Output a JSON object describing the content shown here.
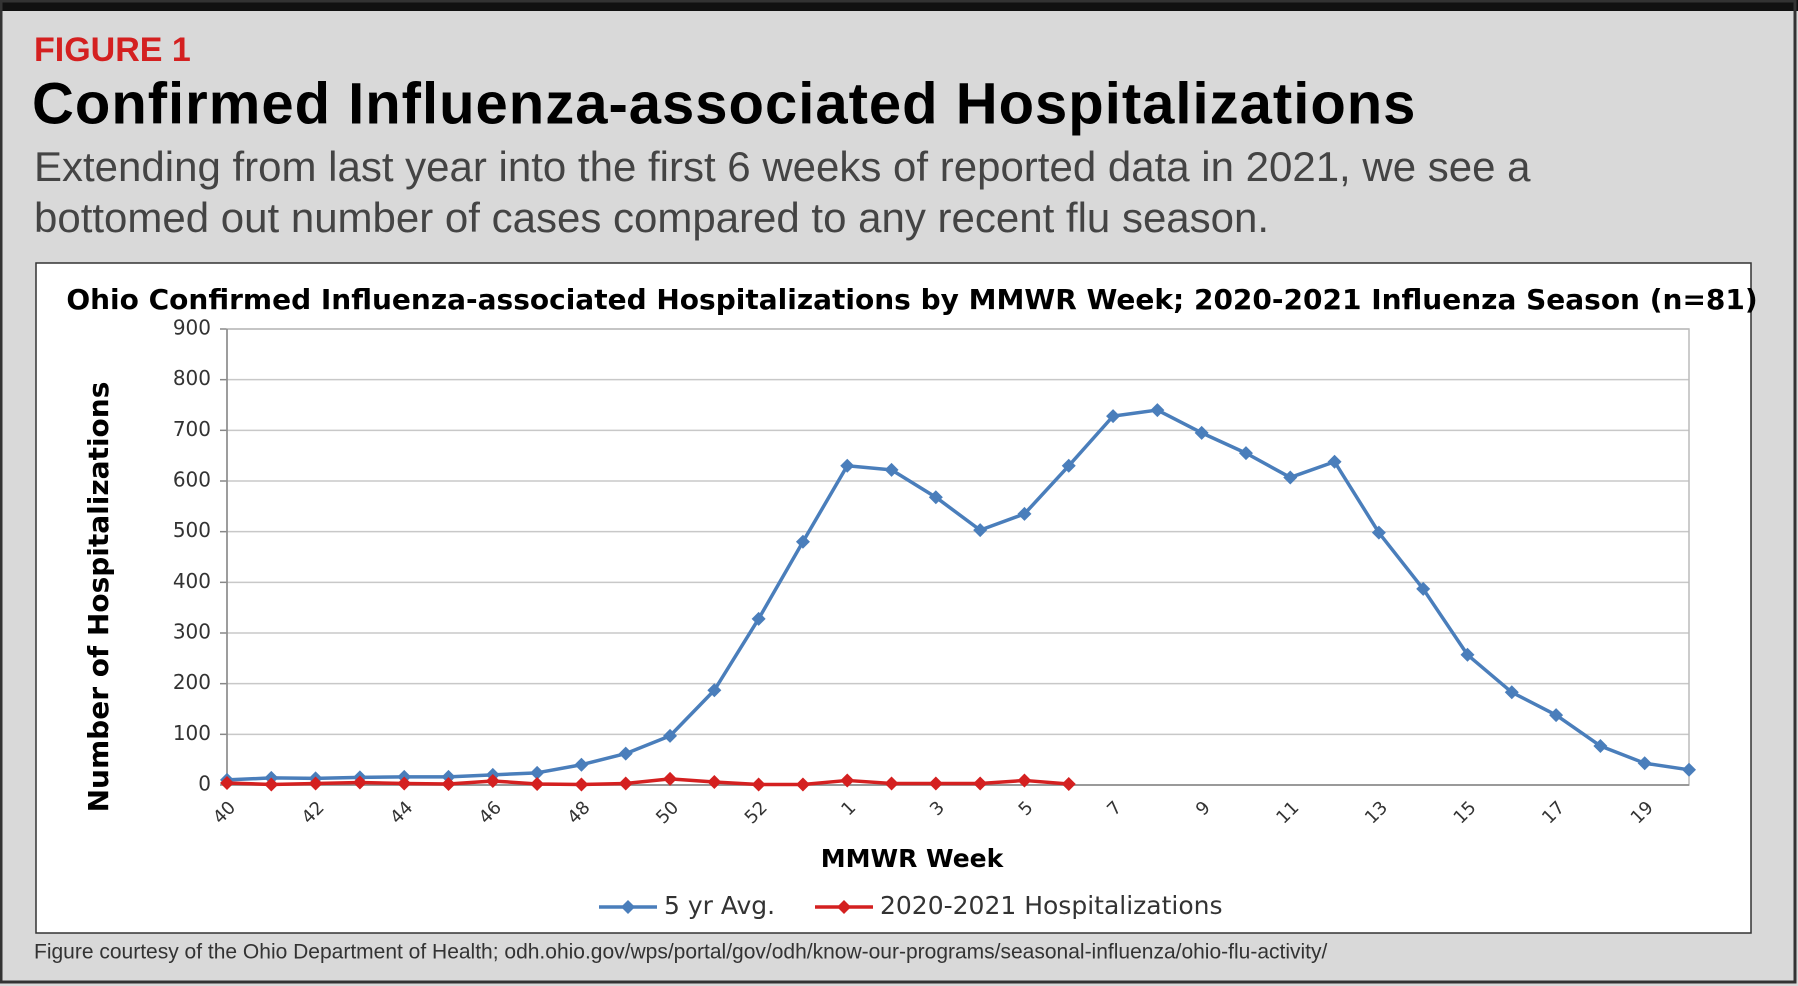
{
  "figure_label": "FIGURE 1",
  "title": "Confirmed Influenza-associated Hospitalizations",
  "subtitle_lines": [
    "Extending from last year into the first 6 weeks of reported data in 2021, we see a",
    "bottomed out number of cases compared to any recent flu season."
  ],
  "caption": "Figure courtesy of the Ohio Department of Health; odh.ohio.gov/wps/portal/gov/odh/know-our-programs/seasonal-influenza/ohio-flu-activity/",
  "chart_data": {
    "type": "line",
    "title": "Ohio Confirmed Influenza-associated Hospitalizations by MMWR Week; 2020-2021 Influenza Season (n=81)",
    "x_label": "MMWR Week",
    "y_label": "Number of Hospitalizations",
    "categories": [
      "40",
      null,
      "42",
      null,
      "44",
      null,
      "46",
      null,
      "48",
      null,
      "50",
      null,
      "52",
      null,
      "1",
      null,
      "3",
      null,
      "5",
      null,
      "7",
      null,
      "9",
      null,
      "11",
      null,
      "13",
      null,
      "15",
      null,
      "17",
      null,
      "19",
      null
    ],
    "series": [
      {
        "name": "5 yr Avg.",
        "color": "#4a7ebb",
        "values": [
          10,
          14,
          13,
          15,
          16,
          16,
          20,
          24,
          40,
          62,
          97,
          187,
          328,
          480,
          630,
          622,
          568,
          503,
          535,
          630,
          728,
          740,
          695,
          655,
          607,
          638,
          498,
          387,
          257,
          183,
          138,
          77,
          43,
          30
        ]
      },
      {
        "name": "2020-2021 Hospitalizations",
        "color": "#d42020",
        "values": [
          4,
          1,
          3,
          5,
          3,
          2,
          8,
          2,
          1,
          3,
          12,
          6,
          1,
          1,
          9,
          3,
          3,
          3,
          9,
          2,
          null,
          null,
          null,
          null,
          null,
          null,
          null,
          null,
          null,
          null,
          null,
          null,
          null,
          null
        ]
      }
    ],
    "ylim": [
      0,
      900
    ],
    "yticks": [
      0,
      100,
      200,
      300,
      400,
      500,
      600,
      700,
      800,
      900
    ],
    "grid": true,
    "legend": "bottom"
  }
}
